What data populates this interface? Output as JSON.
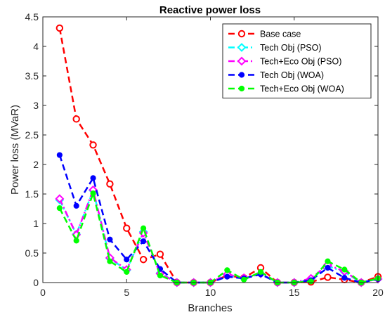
{
  "chart_data": {
    "type": "line",
    "title": "Reactive power loss",
    "xlabel": "Branches",
    "ylabel": "Power loss (MVaR)",
    "xlim": [
      0,
      20
    ],
    "ylim": [
      0,
      4.5
    ],
    "xticks": [
      "0",
      "5",
      "10",
      "15",
      "20"
    ],
    "yticks": [
      "0",
      "0.5",
      "1",
      "1.5",
      "2",
      "2.5",
      "3",
      "3.5",
      "4",
      "4.5"
    ],
    "grid": false,
    "legend_position": "top-right",
    "x": [
      1,
      2,
      3,
      4,
      5,
      6,
      7,
      8,
      9,
      10,
      11,
      12,
      13,
      14,
      15,
      16,
      17,
      18,
      19,
      20
    ],
    "series": [
      {
        "name": "Base case",
        "color": "#ff0000",
        "marker": "circle-open",
        "line": "dashed",
        "values": [
          4.31,
          2.77,
          2.33,
          1.67,
          0.92,
          0.39,
          0.48,
          0.0,
          0.0,
          0.0,
          0.12,
          0.08,
          0.25,
          0.0,
          0.0,
          0.01,
          0.09,
          0.05,
          0.0,
          0.1
        ]
      },
      {
        "name": "Tech Obj (PSO)",
        "color": "#00ffff",
        "marker": "diamond-open",
        "line": "dash-dot",
        "values": [
          1.4,
          0.82,
          1.56,
          0.41,
          0.21,
          0.86,
          0.16,
          0.0,
          0.0,
          0.0,
          0.13,
          0.07,
          0.15,
          0.0,
          0.0,
          0.06,
          0.28,
          0.18,
          0.0,
          0.06
        ]
      },
      {
        "name": "Tech+Eco Obj (PSO)",
        "color": "#ff00ff",
        "marker": "diamond-open",
        "line": "dash-dot",
        "values": [
          1.42,
          0.81,
          1.57,
          0.42,
          0.22,
          0.84,
          0.15,
          0.0,
          0.0,
          0.0,
          0.14,
          0.08,
          0.15,
          0.0,
          0.0,
          0.07,
          0.3,
          0.19,
          0.0,
          0.06
        ]
      },
      {
        "name": "Tech Obj (WOA)",
        "color": "#0000ff",
        "marker": "circle-filled",
        "line": "dashed",
        "values": [
          2.16,
          1.3,
          1.77,
          0.73,
          0.39,
          0.7,
          0.23,
          0.0,
          0.0,
          0.0,
          0.1,
          0.07,
          0.14,
          0.0,
          0.0,
          0.04,
          0.25,
          0.08,
          0.0,
          0.06
        ]
      },
      {
        "name": "Tech+Eco Obj (WOA)",
        "color": "#00ff00",
        "marker": "circle-filled",
        "line": "dashed",
        "values": [
          1.26,
          0.71,
          1.51,
          0.36,
          0.18,
          0.92,
          0.12,
          0.0,
          0.0,
          0.0,
          0.21,
          0.05,
          0.18,
          0.0,
          0.0,
          0.02,
          0.36,
          0.22,
          0.0,
          0.07
        ]
      }
    ]
  }
}
